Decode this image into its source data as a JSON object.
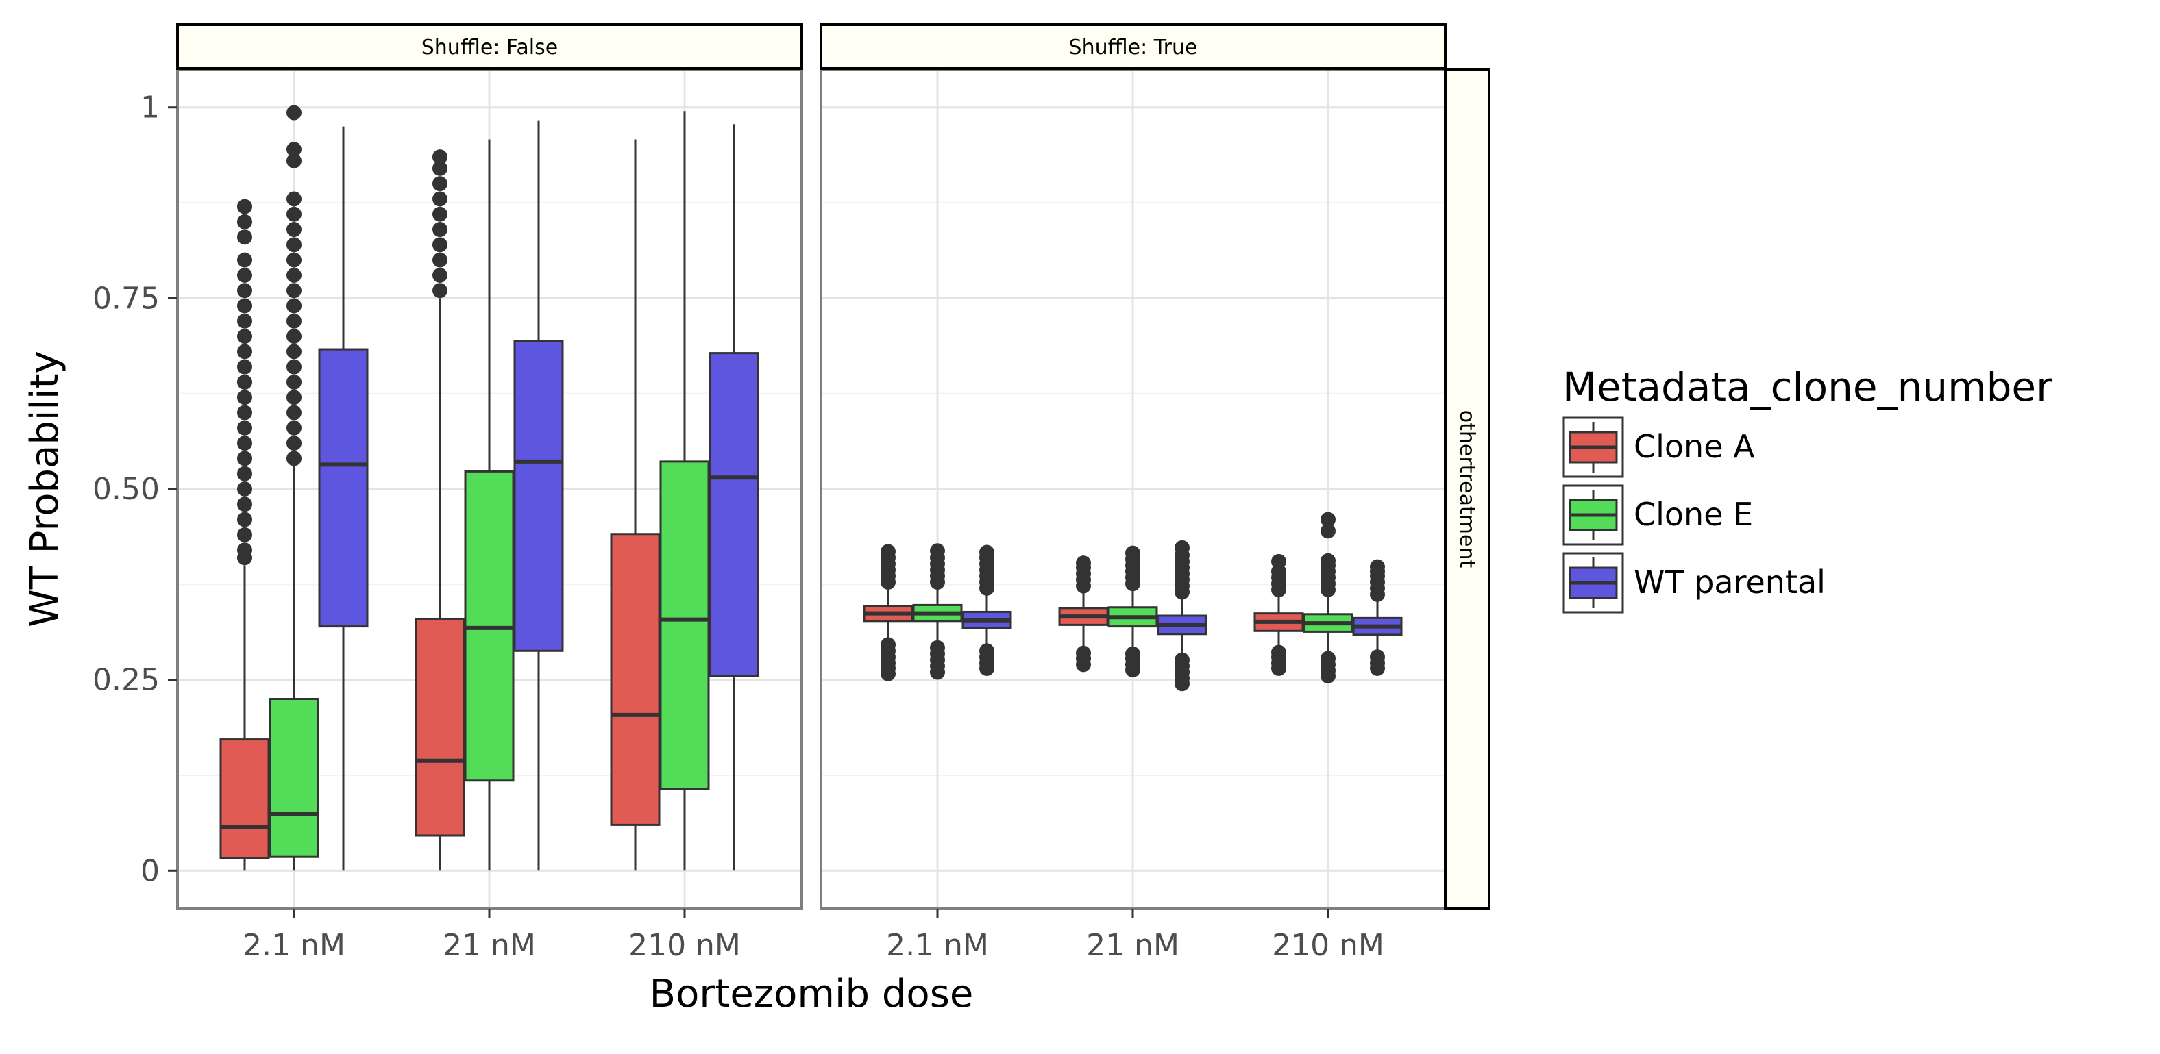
{
  "chart_data": {
    "type": "box",
    "ylabel": "WT Probability",
    "xlabel": "Bortezomib dose",
    "ylim": [
      -0.05,
      1.05
    ],
    "yticks": [
      {
        "value": 0,
        "label": "0"
      },
      {
        "value": 0.25,
        "label": "0.25"
      },
      {
        "value": 0.5,
        "label": "0.50"
      },
      {
        "value": 0.75,
        "label": "0.75"
      },
      {
        "value": 1,
        "label": "1"
      }
    ],
    "categories": [
      "2.1 nM",
      "21 nM",
      "210 nM"
    ],
    "grid": true,
    "facet_row_label": "othertreatment",
    "legend": {
      "title": "Metadata_clone_number",
      "position": "right",
      "items": [
        {
          "label": "Clone A",
          "color": "#e05b53"
        },
        {
          "label": "Clone E",
          "color": "#53dc57"
        },
        {
          "label": "WT parental",
          "color": "#5f56e0"
        }
      ]
    },
    "panels": [
      {
        "title": "Shuffle: False",
        "groups": [
          {
            "category": "2.1 nM",
            "series": "Clone A",
            "q1": 0.016,
            "median": 0.057,
            "q3": 0.172,
            "whisker_low": 0.0,
            "whisker_high": 0.4,
            "outliers": [
              0.41,
              0.42,
              0.44,
              0.46,
              0.48,
              0.5,
              0.52,
              0.54,
              0.56,
              0.58,
              0.6,
              0.62,
              0.64,
              0.66,
              0.68,
              0.7,
              0.72,
              0.74,
              0.76,
              0.78,
              0.8,
              0.83,
              0.85,
              0.87
            ]
          },
          {
            "category": "2.1 nM",
            "series": "Clone E",
            "q1": 0.018,
            "median": 0.074,
            "q3": 0.225,
            "whisker_low": 0.0,
            "whisker_high": 0.53,
            "outliers": [
              0.54,
              0.56,
              0.58,
              0.6,
              0.62,
              0.64,
              0.66,
              0.68,
              0.7,
              0.72,
              0.74,
              0.76,
              0.78,
              0.8,
              0.82,
              0.84,
              0.86,
              0.88,
              0.93,
              0.945,
              0.993
            ]
          },
          {
            "category": "2.1 nM",
            "series": "WT parental",
            "q1": 0.32,
            "median": 0.532,
            "q3": 0.683,
            "whisker_low": 0.0,
            "whisker_high": 0.975,
            "outliers": []
          },
          {
            "category": "21 nM",
            "series": "Clone A",
            "q1": 0.046,
            "median": 0.144,
            "q3": 0.33,
            "whisker_low": 0.0,
            "whisker_high": 0.75,
            "outliers": [
              0.76,
              0.78,
              0.8,
              0.82,
              0.84,
              0.86,
              0.88,
              0.9,
              0.92,
              0.935
            ]
          },
          {
            "category": "21 nM",
            "series": "Clone E",
            "q1": 0.118,
            "median": 0.318,
            "q3": 0.523,
            "whisker_low": 0.0,
            "whisker_high": 0.958,
            "outliers": []
          },
          {
            "category": "21 nM",
            "series": "WT parental",
            "q1": 0.288,
            "median": 0.536,
            "q3": 0.694,
            "whisker_low": 0.0,
            "whisker_high": 0.983,
            "outliers": []
          },
          {
            "category": "210 nM",
            "series": "Clone A",
            "q1": 0.06,
            "median": 0.204,
            "q3": 0.441,
            "whisker_low": 0.0,
            "whisker_high": 0.958,
            "outliers": []
          },
          {
            "category": "210 nM",
            "series": "Clone E",
            "q1": 0.107,
            "median": 0.329,
            "q3": 0.536,
            "whisker_low": 0.0,
            "whisker_high": 0.995,
            "outliers": []
          },
          {
            "category": "210 nM",
            "series": "WT parental",
            "q1": 0.255,
            "median": 0.515,
            "q3": 0.678,
            "whisker_low": 0.0,
            "whisker_high": 0.978,
            "outliers": []
          }
        ]
      },
      {
        "title": "Shuffle: True",
        "groups": [
          {
            "category": "2.1 nM",
            "series": "Clone A",
            "q1": 0.327,
            "median": 0.337,
            "q3": 0.347,
            "whisker_low": 0.3,
            "whisker_high": 0.372,
            "outliers": [
              0.258,
              0.265,
              0.272,
              0.28,
              0.288,
              0.296,
              0.378,
              0.386,
              0.394,
              0.402,
              0.41,
              0.418
            ]
          },
          {
            "category": "2.1 nM",
            "series": "Clone E",
            "q1": 0.327,
            "median": 0.337,
            "q3": 0.348,
            "whisker_low": 0.3,
            "whisker_high": 0.373,
            "outliers": [
              0.26,
              0.268,
              0.276,
              0.284,
              0.292,
              0.378,
              0.386,
              0.394,
              0.402,
              0.41,
              0.419
            ]
          },
          {
            "category": "2.1 nM",
            "series": "WT parental",
            "q1": 0.318,
            "median": 0.328,
            "q3": 0.339,
            "whisker_low": 0.29,
            "whisker_high": 0.365,
            "outliers": [
              0.265,
              0.272,
              0.28,
              0.288,
              0.37,
              0.378,
              0.386,
              0.394,
              0.402,
              0.41,
              0.417
            ]
          },
          {
            "category": "21 nM",
            "series": "Clone A",
            "q1": 0.322,
            "median": 0.333,
            "q3": 0.344,
            "whisker_low": 0.29,
            "whisker_high": 0.368,
            "outliers": [
              0.27,
              0.278,
              0.285,
              0.373,
              0.381,
              0.389,
              0.397,
              0.403
            ]
          },
          {
            "category": "21 nM",
            "series": "Clone E",
            "q1": 0.32,
            "median": 0.332,
            "q3": 0.345,
            "whisker_low": 0.288,
            "whisker_high": 0.37,
            "outliers": [
              0.263,
              0.27,
              0.278,
              0.284,
              0.376,
              0.384,
              0.392,
              0.4,
              0.408,
              0.416
            ]
          },
          {
            "category": "21 nM",
            "series": "WT parental",
            "q1": 0.31,
            "median": 0.322,
            "q3": 0.334,
            "whisker_low": 0.28,
            "whisker_high": 0.36,
            "outliers": [
              0.245,
              0.252,
              0.26,
              0.268,
              0.276,
              0.365,
              0.373,
              0.381,
              0.389,
              0.397,
              0.405,
              0.413,
              0.423
            ]
          },
          {
            "category": "210 nM",
            "series": "Clone A",
            "q1": 0.314,
            "median": 0.326,
            "q3": 0.337,
            "whisker_low": 0.29,
            "whisker_high": 0.362,
            "outliers": [
              0.265,
              0.272,
              0.28,
              0.286,
              0.368,
              0.376,
              0.384,
              0.392,
              0.405
            ]
          },
          {
            "category": "210 nM",
            "series": "Clone E",
            "q1": 0.313,
            "median": 0.324,
            "q3": 0.336,
            "whisker_low": 0.285,
            "whisker_high": 0.362,
            "outliers": [
              0.255,
              0.262,
              0.27,
              0.278,
              0.368,
              0.376,
              0.384,
              0.392,
              0.4,
              0.406,
              0.445,
              0.46
            ]
          },
          {
            "category": "210 nM",
            "series": "WT parental",
            "q1": 0.309,
            "median": 0.32,
            "q3": 0.331,
            "whisker_low": 0.285,
            "whisker_high": 0.357,
            "outliers": [
              0.265,
              0.272,
              0.28,
              0.362,
              0.37,
              0.378,
              0.386,
              0.392,
              0.398
            ]
          }
        ]
      }
    ]
  }
}
